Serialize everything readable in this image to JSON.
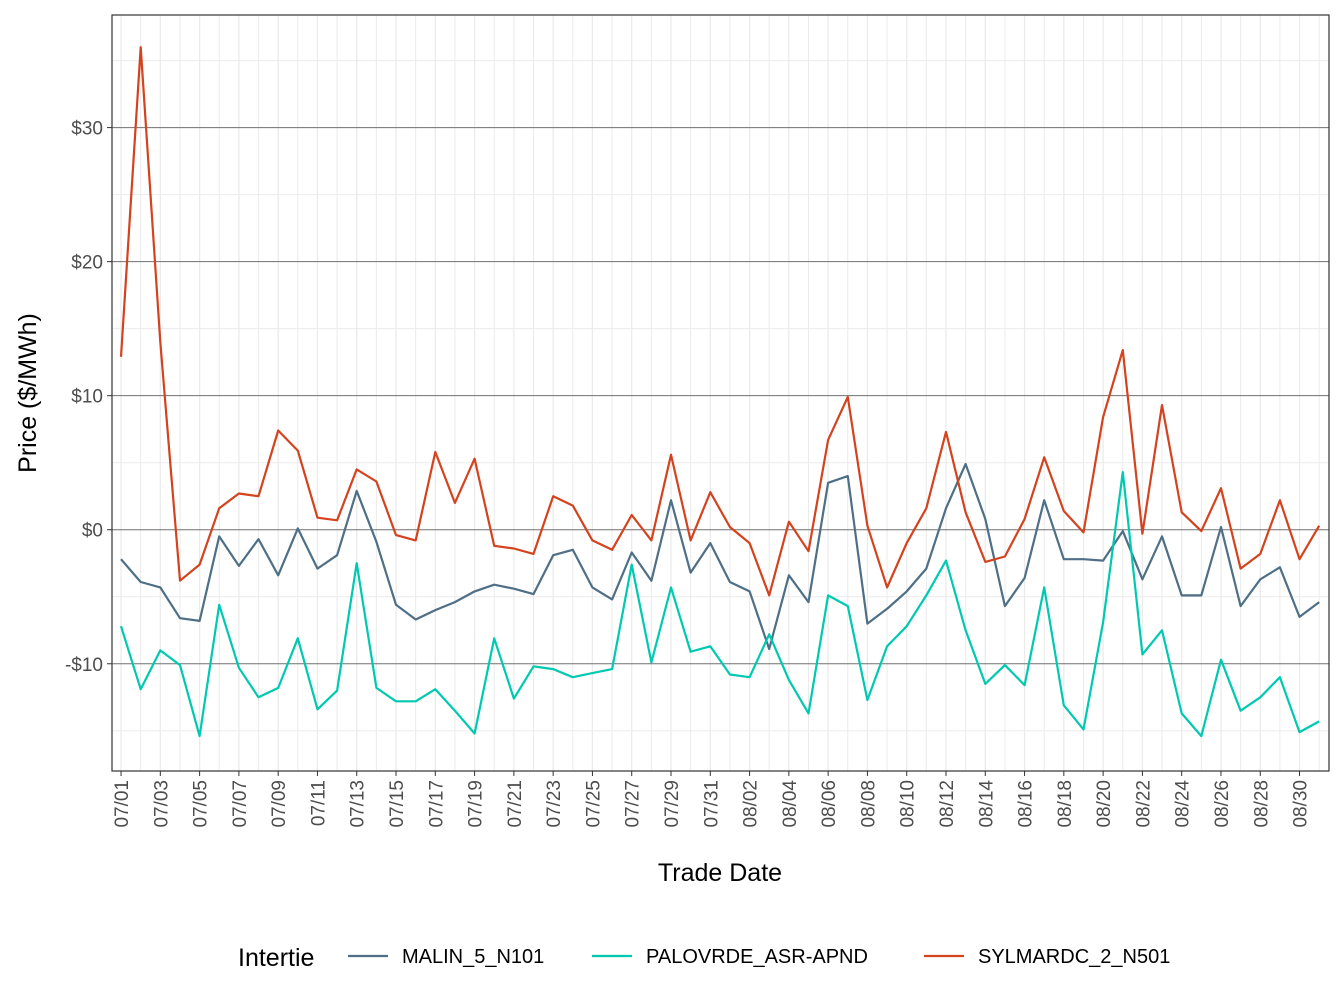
{
  "chart_data": {
    "type": "line",
    "xlabel": "Trade Date",
    "ylabel": "Price ($/MWh)",
    "legend_title": "Intertie",
    "legend_position": "bottom",
    "grid": true,
    "ylim": [
      -18,
      38.4
    ],
    "y_ticks": [
      -10,
      0,
      10,
      20,
      30
    ],
    "y_tick_labels": [
      "-$10",
      "$0",
      "$10",
      "$20",
      "$30"
    ],
    "x": [
      "07/01",
      "07/02",
      "07/03",
      "07/04",
      "07/05",
      "07/06",
      "07/07",
      "07/08",
      "07/09",
      "07/10",
      "07/11",
      "07/12",
      "07/13",
      "07/14",
      "07/15",
      "07/16",
      "07/17",
      "07/18",
      "07/19",
      "07/20",
      "07/21",
      "07/22",
      "07/23",
      "07/24",
      "07/25",
      "07/26",
      "07/27",
      "07/28",
      "07/29",
      "07/30",
      "07/31",
      "08/01",
      "08/02",
      "08/03",
      "08/04",
      "08/05",
      "08/06",
      "08/07",
      "08/08",
      "08/09",
      "08/10",
      "08/11",
      "08/12",
      "08/13",
      "08/14",
      "08/15",
      "08/16",
      "08/17",
      "08/18",
      "08/19",
      "08/20",
      "08/21",
      "08/22",
      "08/23",
      "08/24",
      "08/25",
      "08/26",
      "08/27",
      "08/28",
      "08/29",
      "08/30",
      "08/31"
    ],
    "x_tick_labels": [
      "07/01",
      "07/03",
      "07/05",
      "07/07",
      "07/09",
      "07/11",
      "07/13",
      "07/15",
      "07/17",
      "07/19",
      "07/21",
      "07/23",
      "07/25",
      "07/27",
      "07/29",
      "07/31",
      "08/02",
      "08/04",
      "08/06",
      "08/08",
      "08/10",
      "08/12",
      "08/14",
      "08/16",
      "08/18",
      "08/20",
      "08/22",
      "08/24",
      "08/26",
      "08/28",
      "08/30"
    ],
    "series": [
      {
        "name": "MALIN_5_N101",
        "color": "#4e6f86",
        "values": [
          -2.2,
          -3.9,
          -4.3,
          -6.6,
          -6.8,
          -0.5,
          -2.7,
          -0.7,
          -3.4,
          0.1,
          -2.9,
          -1.9,
          2.9,
          -0.9,
          -5.6,
          -6.7,
          -6.0,
          -5.4,
          -4.6,
          -4.1,
          -4.4,
          -4.8,
          -1.9,
          -1.5,
          -4.3,
          -5.2,
          -1.7,
          -3.8,
          2.2,
          -3.2,
          -1.0,
          -3.9,
          -4.6,
          -8.9,
          -3.4,
          -5.4,
          3.5,
          4.0,
          -7.0,
          -5.9,
          -4.6,
          -2.9,
          1.6,
          4.9,
          0.8,
          -5.7,
          -3.6,
          2.2,
          -2.2,
          -2.2,
          -2.3,
          -0.1,
          -3.7,
          -0.5,
          -4.9,
          -4.9,
          0.2,
          -5.7,
          -3.7,
          -2.8,
          -6.5,
          -5.4
        ]
      },
      {
        "name": "PALOVRDE_ASR-APND",
        "color": "#00c9b1",
        "values": [
          -7.2,
          -11.9,
          -9.0,
          -10.1,
          -15.4,
          -5.6,
          -10.3,
          -12.5,
          -11.8,
          -8.1,
          -13.4,
          -12.0,
          -2.5,
          -11.8,
          -12.8,
          -12.8,
          -11.9,
          -13.5,
          -15.2,
          -8.1,
          -12.6,
          -10.2,
          -10.4,
          -11.0,
          -10.7,
          -10.4,
          -2.6,
          -9.9,
          -4.3,
          -9.1,
          -8.7,
          -10.8,
          -11.0,
          -7.8,
          -11.2,
          -13.7,
          -4.9,
          -5.7,
          -12.7,
          -8.7,
          -7.2,
          -4.9,
          -2.3,
          -7.5,
          -11.5,
          -10.1,
          -11.6,
          -4.3,
          -13.1,
          -14.9,
          -6.9,
          4.3,
          -9.3,
          -7.5,
          -13.7,
          -15.4,
          -9.7,
          -13.5,
          -12.5,
          -11.0,
          -15.1,
          -14.3
        ]
      },
      {
        "name": "SYLMARDC_2_N501",
        "color": "#d4421e",
        "values": [
          12.9,
          36.0,
          14.0,
          -3.8,
          -2.6,
          1.6,
          2.7,
          2.5,
          7.4,
          5.9,
          0.9,
          0.7,
          4.5,
          3.6,
          -0.4,
          -0.8,
          5.8,
          2.0,
          5.3,
          -1.2,
          -1.4,
          -1.8,
          2.5,
          1.8,
          -0.8,
          -1.5,
          1.1,
          -0.8,
          5.6,
          -0.8,
          2.8,
          0.2,
          -1.0,
          -4.9,
          0.6,
          -1.6,
          6.7,
          9.9,
          0.3,
          -4.3,
          -1.0,
          1.6,
          7.3,
          1.3,
          -2.4,
          -2.0,
          0.8,
          5.4,
          1.4,
          -0.2,
          8.4,
          13.4,
          -0.3,
          9.3,
          1.3,
          -0.1,
          3.1,
          -2.9,
          -1.8,
          2.2,
          -2.2,
          0.3
        ]
      }
    ]
  }
}
